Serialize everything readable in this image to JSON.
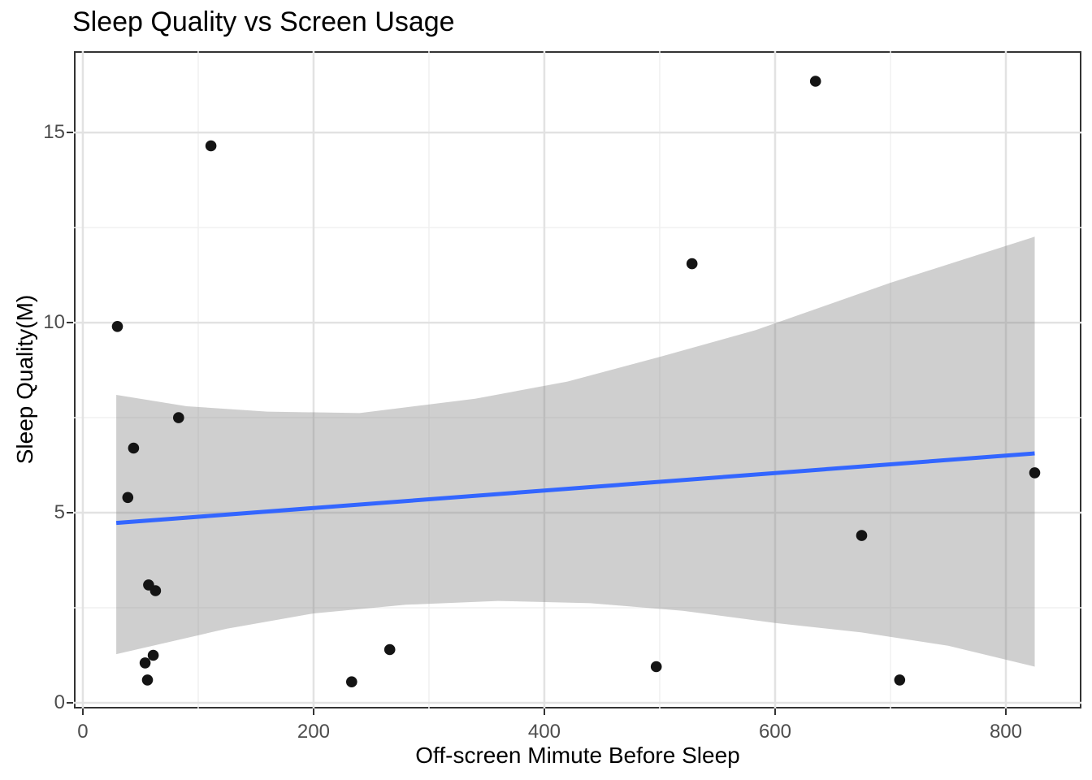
{
  "title": "Sleep Quality vs Screen Usage",
  "chart_data": {
    "type": "scatter",
    "title": "Sleep Quality vs Screen Usage",
    "xlabel": "Off-screen Mimute Before Sleep",
    "ylabel": "Sleep Quality(M)",
    "legend": "none",
    "grid": "major and minor, light grey on white (theme_bw style, dark panel border)",
    "points": [
      {
        "x": 30,
        "y": 9.9
      },
      {
        "x": 111,
        "y": 14.65
      },
      {
        "x": 635,
        "y": 16.35
      },
      {
        "x": 528,
        "y": 11.55
      },
      {
        "x": 44,
        "y": 6.7
      },
      {
        "x": 83,
        "y": 7.5
      },
      {
        "x": 39,
        "y": 5.4
      },
      {
        "x": 825,
        "y": 6.05
      },
      {
        "x": 675,
        "y": 4.4
      },
      {
        "x": 57,
        "y": 3.1
      },
      {
        "x": 63,
        "y": 2.95
      },
      {
        "x": 266,
        "y": 1.4
      },
      {
        "x": 61,
        "y": 1.25
      },
      {
        "x": 54,
        "y": 1.05
      },
      {
        "x": 497,
        "y": 0.95
      },
      {
        "x": 233,
        "y": 0.55
      },
      {
        "x": 56,
        "y": 0.6
      },
      {
        "x": 708,
        "y": 0.6
      }
    ],
    "trend_line": {
      "x_start": 29,
      "y_start": 4.73,
      "x_end": 825,
      "y_end": 6.56
    },
    "ci_band": {
      "upper": [
        [
          29,
          8.1
        ],
        [
          90,
          7.8
        ],
        [
          160,
          7.66
        ],
        [
          240,
          7.62
        ],
        [
          340,
          8.0
        ],
        [
          420,
          8.45
        ],
        [
          500,
          9.1
        ],
        [
          583,
          9.8
        ],
        [
          700,
          11.05
        ],
        [
          825,
          12.26
        ]
      ],
      "lower": [
        [
          29,
          1.28
        ],
        [
          125,
          1.95
        ],
        [
          200,
          2.35
        ],
        [
          280,
          2.58
        ],
        [
          360,
          2.68
        ],
        [
          440,
          2.62
        ],
        [
          520,
          2.42
        ],
        [
          600,
          2.1
        ],
        [
          675,
          1.85
        ],
        [
          750,
          1.5
        ],
        [
          825,
          0.95
        ]
      ]
    },
    "x_ticks": [
      0,
      200,
      400,
      600,
      800
    ],
    "y_ticks": [
      0,
      5,
      10,
      15
    ],
    "x_minor_gridlines": [
      100,
      300,
      500,
      700
    ],
    "y_minor_gridlines": [
      2.5,
      7.5,
      12.5
    ],
    "xlim": [
      -7.7,
      865.5
    ],
    "ylim": [
      -0.15,
      17.14
    ]
  },
  "colors": {
    "point": "#141414",
    "trend_line": "#3366FF",
    "ci_band_fill": "#808080",
    "ci_band_opacity": "0.38",
    "grid_major": "#E2E2E2",
    "grid_minor": "#F0F0F0",
    "panel_border": "#333333",
    "tick": "#333333",
    "tick_label": "#4D4D4D",
    "text": "#000000",
    "background": "#FFFFFF"
  }
}
